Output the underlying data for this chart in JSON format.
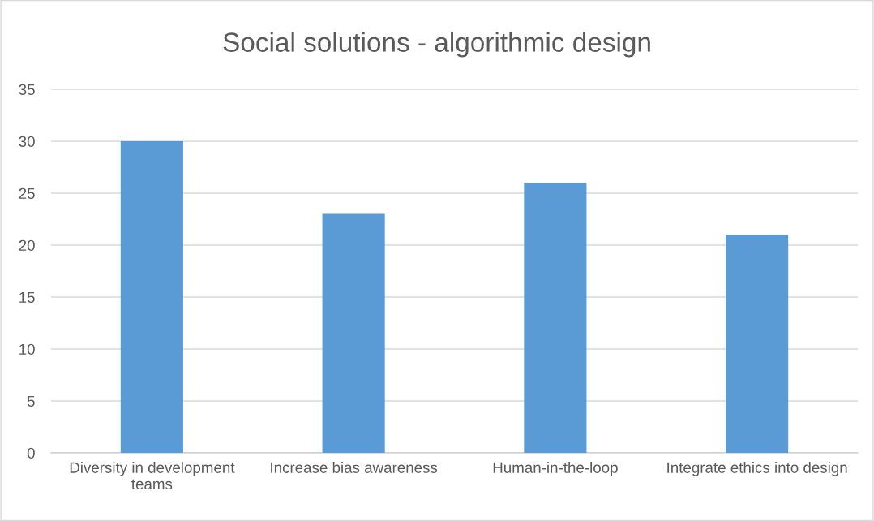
{
  "chart_data": {
    "type": "bar",
    "title": "Social solutions - algorithmic design",
    "categories": [
      "Diversity in development teams",
      "Increase bias awareness",
      "Human-in-the-loop",
      "Integrate ethics into design"
    ],
    "values": [
      30,
      23,
      26,
      21
    ],
    "color": "#5b9bd5",
    "ylim": [
      0,
      35
    ],
    "yticks": [
      0,
      5,
      10,
      15,
      20,
      25,
      30,
      35
    ],
    "grid": "y",
    "legend": false
  }
}
